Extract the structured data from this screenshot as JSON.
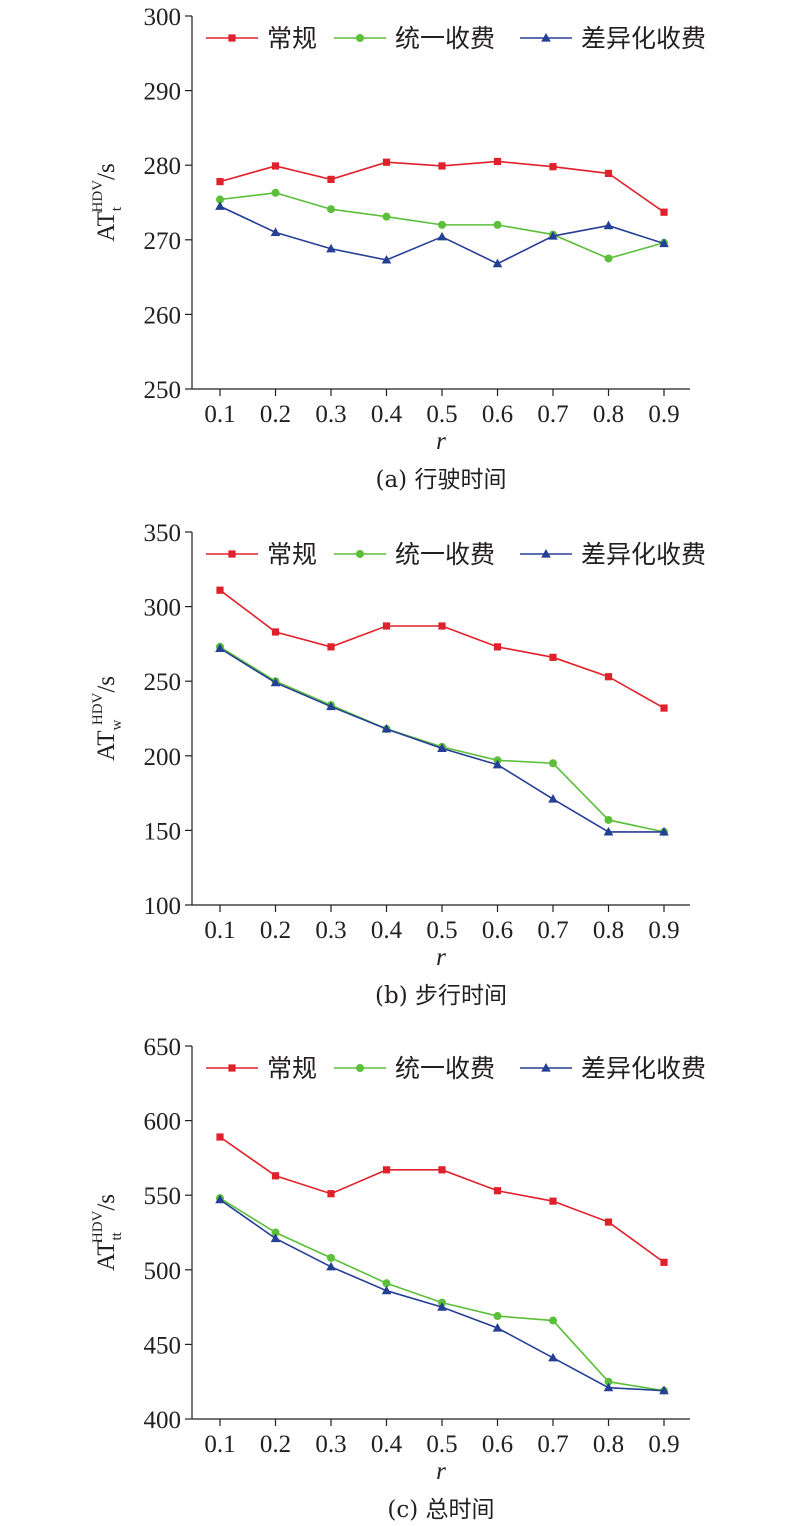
{
  "chart_data": [
    {
      "type": "line",
      "caption": "(a) 行驶时间",
      "ylabel": {
        "base": "AT",
        "sub": "t",
        "sup": "HDV",
        "unit": "/s"
      },
      "xlabel": "r",
      "categories": [
        "0.1",
        "0.2",
        "0.3",
        "0.4",
        "0.5",
        "0.6",
        "0.7",
        "0.8",
        "0.9"
      ],
      "ylim": [
        250,
        300
      ],
      "yticks": [
        "250",
        "260",
        "270",
        "280",
        "290",
        "300"
      ],
      "legend_position": "top",
      "series": [
        {
          "name": "常规",
          "color": "#e0202a",
          "marker": "square",
          "values": [
            277.8,
            279.9,
            278.1,
            280.4,
            279.9,
            280.5,
            279.8,
            278.9,
            273.7
          ]
        },
        {
          "name": "统一收费",
          "color": "#5bbf3a",
          "marker": "circle",
          "values": [
            275.4,
            276.3,
            274.1,
            273.1,
            272.0,
            272.0,
            270.7,
            267.5,
            269.6
          ]
        },
        {
          "name": "差异化收费",
          "color": "#253f94",
          "marker": "triangle",
          "values": [
            274.5,
            271.0,
            268.8,
            267.3,
            270.4,
            266.8,
            270.5,
            271.9,
            269.5
          ]
        }
      ]
    },
    {
      "type": "line",
      "caption": "(b) 步行时间",
      "ylabel": {
        "base": "AT",
        "sub": "w",
        "sup": "HDV",
        "unit": "/s"
      },
      "xlabel": "r",
      "categories": [
        "0.1",
        "0.2",
        "0.3",
        "0.4",
        "0.5",
        "0.6",
        "0.7",
        "0.8",
        "0.9"
      ],
      "ylim": [
        100,
        350
      ],
      "yticks": [
        "100",
        "150",
        "200",
        "250",
        "300",
        "350"
      ],
      "legend_position": "top",
      "series": [
        {
          "name": "常规",
          "color": "#e0202a",
          "marker": "square",
          "values": [
            311,
            283,
            273,
            287,
            287,
            273,
            266,
            253,
            232
          ]
        },
        {
          "name": "统一收费",
          "color": "#5bbf3a",
          "marker": "circle",
          "values": [
            273,
            250,
            234,
            218,
            206,
            197,
            195,
            157,
            149
          ]
        },
        {
          "name": "差异化收费",
          "color": "#253f94",
          "marker": "triangle",
          "values": [
            272,
            249,
            233,
            218,
            205,
            194,
            171,
            149,
            149
          ]
        }
      ]
    },
    {
      "type": "line",
      "caption": "(c) 总时间",
      "ylabel": {
        "base": "AT",
        "sub": "tt",
        "sup": "HDV",
        "unit": "/s"
      },
      "xlabel": "r",
      "categories": [
        "0.1",
        "0.2",
        "0.3",
        "0.4",
        "0.5",
        "0.6",
        "0.7",
        "0.8",
        "0.9"
      ],
      "ylim": [
        400,
        650
      ],
      "yticks": [
        "400",
        "450",
        "500",
        "550",
        "600",
        "650"
      ],
      "legend_position": "top",
      "series": [
        {
          "name": "常规",
          "color": "#e0202a",
          "marker": "square",
          "values": [
            589,
            563,
            551,
            567,
            567,
            553,
            546,
            532,
            505
          ]
        },
        {
          "name": "统一收费",
          "color": "#5bbf3a",
          "marker": "circle",
          "values": [
            548,
            525,
            508,
            491,
            478,
            469,
            466,
            425,
            419
          ]
        },
        {
          "name": "差异化收费",
          "color": "#253f94",
          "marker": "triangle",
          "values": [
            547,
            521,
            502,
            486,
            475,
            461,
            441,
            421,
            419
          ]
        }
      ]
    }
  ]
}
